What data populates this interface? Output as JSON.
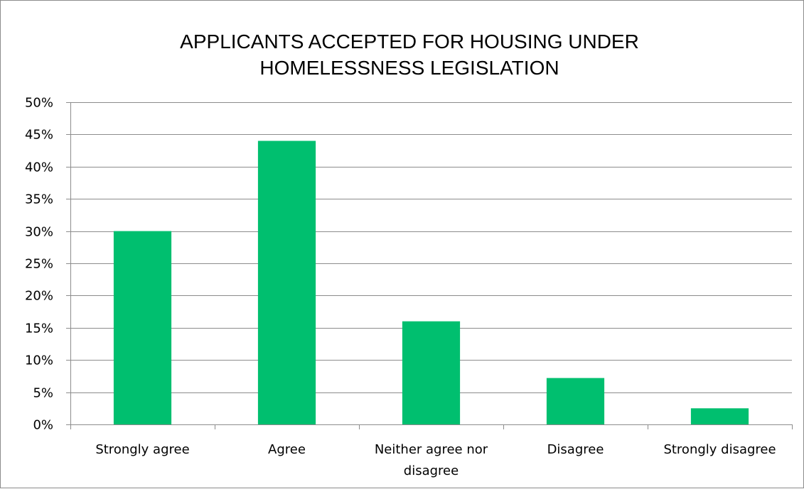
{
  "chart_data": {
    "type": "bar",
    "title": "APPLICANTS ACCEPTED FOR HOUSING UNDER HOMELESSNESS LEGISLATION",
    "title_lines": [
      "APPLICANTS ACCEPTED FOR HOUSING UNDER",
      "HOMELESSNESS LEGISLATION"
    ],
    "categories": [
      "Strongly agree",
      "Agree",
      "Neither agree nor disagree",
      "Disagree",
      "Strongly disagree"
    ],
    "category_lines": [
      [
        "Strongly agree"
      ],
      [
        "Agree"
      ],
      [
        "Neither agree nor",
        "disagree"
      ],
      [
        "Disagree"
      ],
      [
        "Strongly disagree"
      ]
    ],
    "values": [
      30,
      44,
      16,
      7.2,
      2.5
    ],
    "ylim": [
      0,
      50
    ],
    "yticks": [
      0,
      5,
      10,
      15,
      20,
      25,
      30,
      35,
      40,
      45,
      50
    ],
    "ytick_labels": [
      "0%",
      "5%",
      "10%",
      "15%",
      "20%",
      "25%",
      "30%",
      "35%",
      "40%",
      "45%",
      "50%"
    ],
    "xlabel": "",
    "ylabel": "",
    "grid": true,
    "legend": "none",
    "colors": {
      "bar": "#00BF6F",
      "gridline": "#8c8c8c",
      "axis": "#8c8c8c",
      "text": "#000000"
    }
  }
}
